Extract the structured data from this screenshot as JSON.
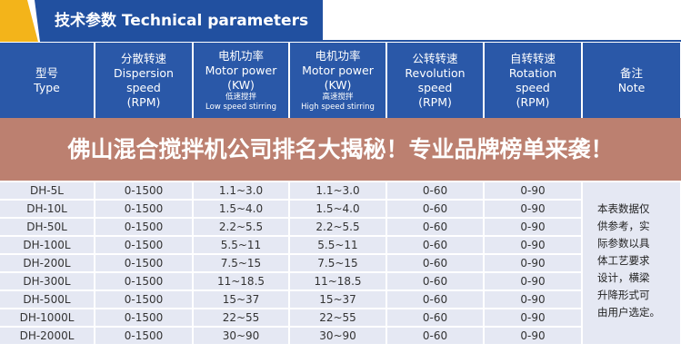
{
  "banner": {
    "title": "技术参数 Technical parameters",
    "colors": {
      "blue": "#2150a0",
      "yellow": "#f3b41a"
    }
  },
  "table": {
    "headers": [
      {
        "cn": "型号",
        "en": [
          "Type"
        ]
      },
      {
        "cn": "分散转速",
        "en": [
          "Dispersion",
          "speed",
          "(RPM)"
        ]
      },
      {
        "cn": "电机功率",
        "en": [
          "Motor power",
          "(KW)"
        ],
        "sub_cn": "低速搅拌",
        "sub_en": "Low speed stirring"
      },
      {
        "cn": "电机功率",
        "en": [
          "Motor power",
          "(KW)"
        ],
        "sub_cn": "高速搅拌",
        "sub_en": "High speed stirring"
      },
      {
        "cn": "公转转速",
        "en": [
          "Revolution",
          "speed",
          "(RPM)"
        ]
      },
      {
        "cn": "自转转速",
        "en": [
          "Rotation",
          "speed",
          "(RPM)"
        ]
      },
      {
        "cn": "备注",
        "en": [
          "Note"
        ]
      }
    ],
    "rows": [
      [
        "DH-5L",
        "0-1500",
        "1.1~3.0",
        "1.1~3.0",
        "0-60",
        "0-90"
      ],
      [
        "DH-10L",
        "0-1500",
        "1.5~4.0",
        "1.5~4.0",
        "0-60",
        "0-90"
      ],
      [
        "DH-50L",
        "0-1500",
        "2.2~5.5",
        "2.2~5.5",
        "0-60",
        "0-90"
      ],
      [
        "DH-100L",
        "0-1500",
        "5.5~11",
        "5.5~11",
        "0-60",
        "0-90"
      ],
      [
        "DH-200L",
        "0-1500",
        "7.5~15",
        "7.5~15",
        "0-60",
        "0-90"
      ],
      [
        "DH-300L",
        "0-1500",
        "11~18.5",
        "11~18.5",
        "0-60",
        "0-90"
      ],
      [
        "DH-500L",
        "0-1500",
        "15~37",
        "15~37",
        "0-60",
        "0-90"
      ],
      [
        "DH-1000L",
        "0-1500",
        "22~55",
        "22~55",
        "0-60",
        "0-90"
      ],
      [
        "DH-2000L",
        "0-1500",
        "30~90",
        "30~90",
        "0-60",
        "0-90"
      ]
    ],
    "note": [
      "本表数据仅",
      "供参考，实",
      "际参数以具",
      "体工艺要求",
      "设计，横梁",
      "升降形式可",
      "由用户选定。"
    ]
  },
  "overlay": {
    "title": "佛山混合搅拌机公司排名大揭秘！专业品牌榜单来袭！"
  }
}
